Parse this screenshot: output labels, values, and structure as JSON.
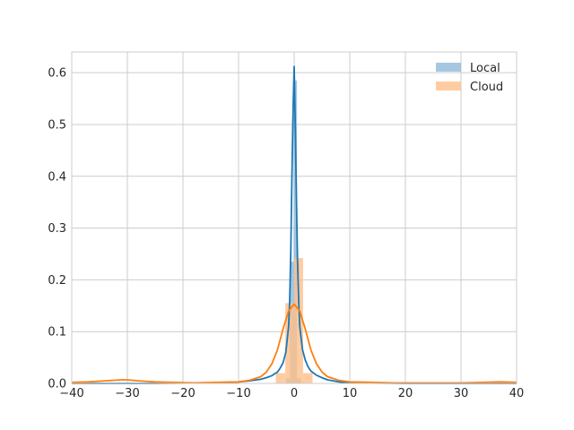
{
  "chart_data": {
    "type": "histogram-kde",
    "title": "",
    "xlabel": "",
    "ylabel": "",
    "xlim": [
      -40,
      40
    ],
    "ylim": [
      0,
      0.64
    ],
    "grid": true,
    "legend_position": "upper-right",
    "x_ticks": [
      -40,
      -30,
      -20,
      -10,
      0,
      10,
      20,
      30,
      40
    ],
    "x_tick_labels": [
      "−40",
      "−30",
      "−20",
      "−10",
      "0",
      "10",
      "20",
      "30",
      "40"
    ],
    "y_ticks": [
      0.0,
      0.1,
      0.2,
      0.3,
      0.4,
      0.5,
      0.6
    ],
    "y_tick_labels": [
      "0.0",
      "0.1",
      "0.2",
      "0.3",
      "0.4",
      "0.5",
      "0.6"
    ],
    "series": [
      {
        "name": "Local",
        "color": "#1f77b4",
        "bar_color": "#8fb9d9",
        "histogram": {
          "bin_edges": [
            -1.5,
            -0.8,
            -0.1,
            0.5,
            1.2
          ],
          "densities": [
            0.01,
            0.235,
            0.585,
            0.01
          ]
        },
        "kde": {
          "x": [
            -40,
            -25,
            -15,
            -10,
            -8,
            -6,
            -5,
            -4,
            -3,
            -2.5,
            -2,
            -1.5,
            -1,
            -0.8,
            -0.6,
            -0.4,
            -0.2,
            0,
            0.2,
            0.4,
            0.6,
            0.8,
            1,
            1.5,
            2,
            2.5,
            3,
            4,
            5,
            6,
            8,
            10,
            20,
            40
          ],
          "y": [
            0,
            0,
            0.001,
            0.003,
            0.005,
            0.008,
            0.011,
            0.015,
            0.022,
            0.03,
            0.04,
            0.06,
            0.11,
            0.16,
            0.26,
            0.4,
            0.53,
            0.612,
            0.5,
            0.36,
            0.24,
            0.16,
            0.11,
            0.065,
            0.045,
            0.032,
            0.024,
            0.016,
            0.011,
            0.007,
            0.003,
            0.001,
            0,
            0
          ]
        }
      },
      {
        "name": "Cloud",
        "color": "#ff7f0e",
        "bar_color": "#ffbf8a",
        "histogram": {
          "bin_edges": [
            -3.3,
            -1.6,
            0.0,
            1.6,
            3.3
          ],
          "densities": [
            0.02,
            0.155,
            0.242,
            0.02
          ]
        },
        "kde": {
          "x": [
            -40,
            -37,
            -34,
            -31,
            -30,
            -28,
            -25,
            -22,
            -18,
            -14,
            -10,
            -8,
            -6,
            -5,
            -4,
            -3,
            -2,
            -1,
            0,
            1,
            2,
            3,
            4,
            5,
            6,
            8,
            10,
            14,
            18,
            22,
            26,
            30,
            34,
            37,
            40
          ],
          "y": [
            0.002,
            0.003,
            0.005,
            0.007,
            0.007,
            0.005,
            0.003,
            0.002,
            0.001,
            0.002,
            0.003,
            0.006,
            0.013,
            0.022,
            0.038,
            0.065,
            0.105,
            0.14,
            0.153,
            0.14,
            0.105,
            0.065,
            0.038,
            0.022,
            0.013,
            0.006,
            0.003,
            0.002,
            0.001,
            0.001,
            0.001,
            0.001,
            0.002,
            0.003,
            0.002
          ]
        }
      }
    ]
  }
}
